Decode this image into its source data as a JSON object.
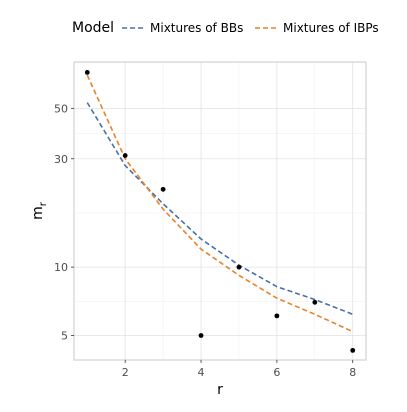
{
  "chart_data": {
    "type": "scatter",
    "legend_title": "Model",
    "legend_position": "top",
    "xlabel": "r",
    "ylabel": "m",
    "ylabel_subscript": "r",
    "x_ticks": [
      2,
      4,
      6,
      8
    ],
    "y_ticks": [
      5,
      10,
      30,
      50
    ],
    "x_range": [
      0.65,
      8.35
    ],
    "y_range": [
      3.9,
      80
    ],
    "y_scale": "log",
    "grid": true,
    "points": [
      {
        "x": 1,
        "y": 72
      },
      {
        "x": 2,
        "y": 31
      },
      {
        "x": 3,
        "y": 22
      },
      {
        "x": 4,
        "y": 5
      },
      {
        "x": 5,
        "y": 10
      },
      {
        "x": 6,
        "y": 6.1
      },
      {
        "x": 7,
        "y": 7
      },
      {
        "x": 8,
        "y": 4.3
      }
    ],
    "series": [
      {
        "name": "Mixtures of BBs",
        "style": "dashed",
        "color": "#4a6fa5",
        "x": [
          1,
          2,
          3,
          4,
          5,
          6,
          7,
          8
        ],
        "y": [
          53,
          28,
          19,
          13.3,
          10.2,
          8.2,
          7.2,
          6.2
        ]
      },
      {
        "name": "Mixtures of IBPs",
        "style": "dashed",
        "color": "#e8812a",
        "x": [
          1,
          2,
          3,
          4,
          5,
          6,
          7,
          8
        ],
        "y": [
          70,
          30,
          18,
          12,
          9.2,
          7.3,
          6.2,
          5.2
        ]
      }
    ]
  }
}
